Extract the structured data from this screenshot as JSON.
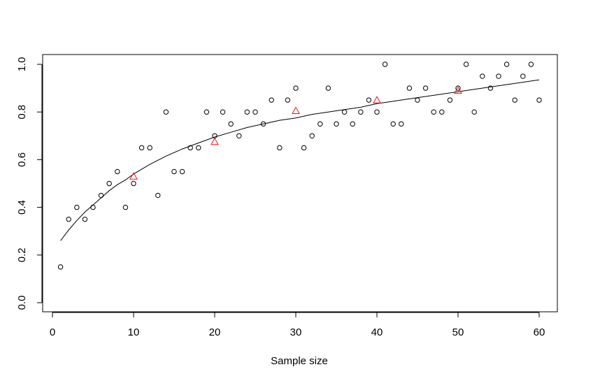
{
  "chart_data": {
    "type": "scatter",
    "title": "",
    "xlabel": "Sample size",
    "ylabel": "",
    "xlim": [
      0,
      62
    ],
    "ylim": [
      0,
      1
    ],
    "x_ticks": [
      0,
      10,
      20,
      30,
      40,
      50,
      60
    ],
    "y_ticks": [
      0.0,
      0.2,
      0.4,
      0.6,
      0.8,
      1.0
    ],
    "y_tick_labels": [
      "0.0",
      "0.2",
      "0.4",
      "0.6",
      "0.8",
      "1.0"
    ],
    "grid": false,
    "legend": "none",
    "colors": {
      "points": "#000000",
      "triangles": "#e41a1c",
      "fit": "#000000",
      "ylabel": "#2ec4c4"
    },
    "series": [
      {
        "marker": "circle",
        "x": [
          1,
          2,
          3,
          4,
          5,
          6,
          7,
          8,
          9,
          10,
          11,
          12,
          13,
          14,
          15,
          16,
          17,
          18,
          19,
          20,
          21,
          22,
          23,
          24,
          25,
          26,
          27,
          28,
          29,
          30,
          31,
          32,
          33,
          34,
          35,
          36,
          37,
          38,
          39,
          40,
          41,
          42,
          43,
          44,
          45,
          46,
          47,
          48,
          49,
          50,
          51,
          52,
          53,
          54,
          55,
          56,
          57,
          58,
          59,
          60
        ],
        "y": [
          0.15,
          0.35,
          0.4,
          0.35,
          0.4,
          0.45,
          0.5,
          0.55,
          0.4,
          0.5,
          0.65,
          0.65,
          0.45,
          0.8,
          0.55,
          0.55,
          0.65,
          0.65,
          0.8,
          0.7,
          0.8,
          0.75,
          0.7,
          0.8,
          0.8,
          0.75,
          0.85,
          0.65,
          0.85,
          0.9,
          0.65,
          0.7,
          0.75,
          0.9,
          0.75,
          0.8,
          0.75,
          0.8,
          0.85,
          0.8,
          1.0,
          0.75,
          0.75,
          0.9,
          0.85,
          0.9,
          0.8,
          0.8,
          0.85,
          0.9,
          1.0,
          0.8,
          0.95,
          0.9,
          0.95,
          1.0,
          0.85,
          0.95,
          1.0,
          0.85
        ]
      },
      {
        "marker": "triangle",
        "x": [
          10,
          20,
          30,
          40,
          50
        ],
        "y": [
          0.53,
          0.675,
          0.805,
          0.85,
          0.89
        ]
      },
      {
        "marker": "line",
        "x": [
          1,
          2,
          3,
          4,
          5,
          6,
          7,
          8,
          9,
          10,
          12,
          14,
          16,
          18,
          20,
          22,
          24,
          26,
          28,
          30,
          32,
          34,
          36,
          38,
          40,
          42,
          44,
          46,
          48,
          50,
          52,
          54,
          56,
          58,
          60
        ],
        "y": [
          0.26,
          0.305,
          0.345,
          0.38,
          0.41,
          0.44,
          0.47,
          0.495,
          0.515,
          0.54,
          0.58,
          0.615,
          0.645,
          0.67,
          0.695,
          0.715,
          0.735,
          0.75,
          0.765,
          0.775,
          0.79,
          0.8,
          0.81,
          0.82,
          0.835,
          0.845,
          0.855,
          0.865,
          0.875,
          0.885,
          0.895,
          0.905,
          0.915,
          0.925,
          0.935
        ]
      }
    ]
  }
}
